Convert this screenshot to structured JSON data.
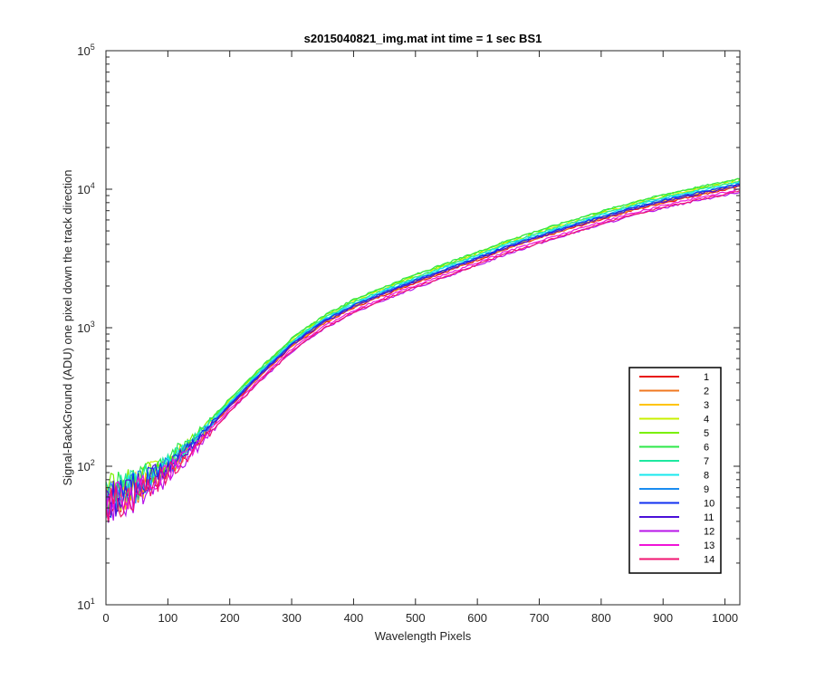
{
  "chart_data": {
    "type": "line",
    "title": "s2015040821_img.mat int time = 1 sec   BS1",
    "xlabel": "Wavelength Pixels",
    "ylabel": "Signal-BackGround (ADU) one pixel down the track direction",
    "xlim": [
      0,
      1024
    ],
    "ylim": [
      10,
      100000
    ],
    "yscale": "log",
    "xticks": [
      "0",
      "100",
      "200",
      "300",
      "400",
      "500",
      "600",
      "700",
      "800",
      "900",
      "1000"
    ],
    "yticks": [
      {
        "base": "10",
        "exp": "1"
      },
      {
        "base": "10",
        "exp": "2"
      },
      {
        "base": "10",
        "exp": "3"
      },
      {
        "base": "10",
        "exp": "4"
      },
      {
        "base": "10",
        "exp": "5"
      }
    ],
    "grid": false,
    "legend_position": "lower-right",
    "x": [
      0,
      50,
      100,
      150,
      200,
      250,
      300,
      350,
      400,
      450,
      500,
      550,
      600,
      650,
      700,
      750,
      800,
      850,
      900,
      950,
      1000,
      1024
    ],
    "base_values": [
      60,
      72,
      100,
      160,
      280,
      470,
      760,
      1100,
      1450,
      1800,
      2200,
      2650,
      3200,
      3900,
      4600,
      5400,
      6300,
      7300,
      8300,
      9300,
      10300,
      10900
    ],
    "series": [
      {
        "name": "1",
        "color": "#e8120c",
        "scale": 0.96
      },
      {
        "name": "2",
        "color": "#f07820",
        "scale": 0.97
      },
      {
        "name": "3",
        "color": "#ffc400",
        "scale": 0.99
      },
      {
        "name": "4",
        "color": "#c8f000",
        "scale": 1.06
      },
      {
        "name": "5",
        "color": "#7af000",
        "scale": 1.09
      },
      {
        "name": "6",
        "color": "#2ee84a",
        "scale": 1.1
      },
      {
        "name": "7",
        "color": "#1ee8a0",
        "scale": 1.05
      },
      {
        "name": "8",
        "color": "#18e8ee",
        "scale": 1.03
      },
      {
        "name": "9",
        "color": "#1a8cf0",
        "scale": 1.01
      },
      {
        "name": "10",
        "color": "#1030f0",
        "scale": 1.0
      },
      {
        "name": "11",
        "color": "#4a10d8",
        "scale": 0.98
      },
      {
        "name": "12",
        "color": "#b814e8",
        "scale": 0.88
      },
      {
        "name": "13",
        "color": "#f014d8",
        "scale": 0.92
      },
      {
        "name": "14",
        "color": "#f01470",
        "scale": 0.89
      }
    ]
  }
}
